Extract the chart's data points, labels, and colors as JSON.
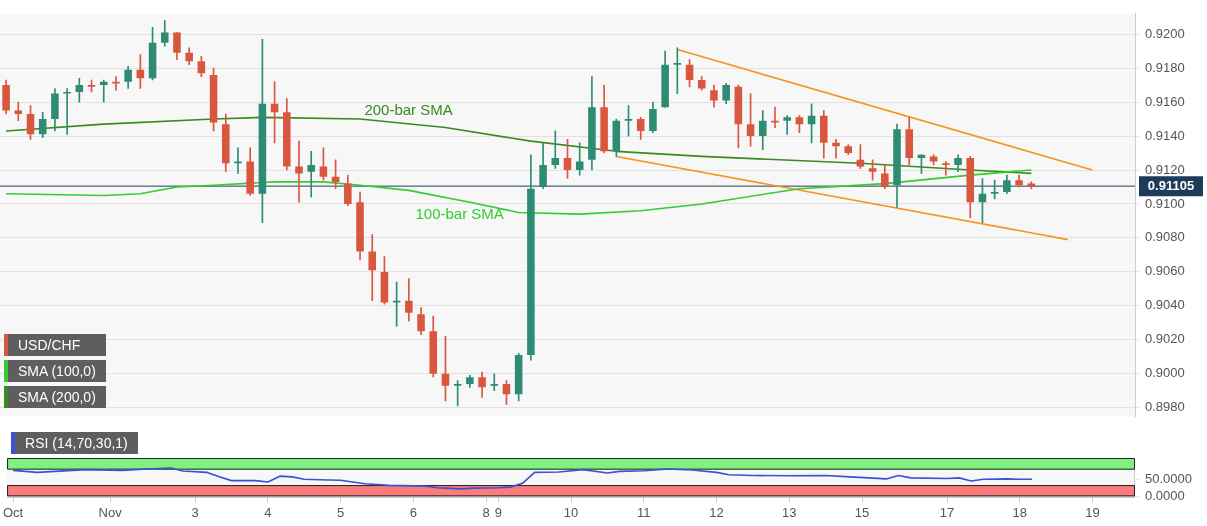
{
  "chart_data": [
    {
      "type": "candlestick",
      "categories": [
        null,
        null,
        null,
        null,
        null,
        null,
        null,
        null,
        null,
        null,
        null,
        null,
        null,
        null,
        null,
        null,
        null,
        null,
        null,
        null,
        null,
        null,
        null,
        null,
        null,
        null,
        null,
        null,
        null,
        null,
        null,
        null,
        null,
        null,
        null,
        null,
        null,
        null,
        null,
        null,
        null,
        null,
        null,
        null,
        null,
        null,
        null,
        null,
        null,
        null,
        null,
        null,
        null,
        null,
        null,
        null,
        null,
        null,
        null,
        null,
        null,
        null,
        null,
        null,
        null,
        null,
        null,
        null,
        null,
        null,
        null,
        null,
        null,
        null,
        null,
        null,
        null,
        null,
        null,
        null,
        null,
        null,
        null,
        null,
        null,
        null,
        null,
        null,
        null,
        null,
        null,
        null,
        null
      ],
      "series": [
        {
          "name": "USD/CHF",
          "ohlc": [
            [
              0.917,
              0.9173,
              0.9153,
              0.9155
            ],
            [
              0.9155,
              0.916,
              0.9149,
              0.9153
            ],
            [
              0.9153,
              0.9158,
              0.9138,
              0.9141
            ],
            [
              0.9141,
              0.9154,
              0.9139,
              0.915
            ],
            [
              0.915,
              0.9168,
              0.9143,
              0.9165
            ],
            [
              0.9165,
              0.9168,
              0.9141,
              0.9166
            ],
            [
              0.9166,
              0.9174,
              0.916,
              0.917
            ],
            [
              0.917,
              0.9173,
              0.9166,
              0.9169
            ],
            [
              0.917,
              0.9173,
              0.916,
              0.9172
            ],
            [
              0.9172,
              0.9175,
              0.9167,
              0.9171
            ],
            [
              0.9172,
              0.9181,
              0.9168,
              0.9179
            ],
            [
              0.9179,
              0.9188,
              0.9168,
              0.9174
            ],
            [
              0.9174,
              0.9204,
              0.9173,
              0.9195
            ],
            [
              0.9195,
              0.9208,
              0.9193,
              0.9201
            ],
            [
              0.9201,
              0.9201,
              0.9185,
              0.9189
            ],
            [
              0.9189,
              0.9192,
              0.9182,
              0.9184
            ],
            [
              0.9184,
              0.9187,
              0.9175,
              0.9177
            ],
            [
              0.9176,
              0.918,
              0.9143,
              0.9148
            ],
            [
              0.9147,
              0.9153,
              0.9119,
              0.9124
            ],
            [
              0.9124,
              0.9133,
              0.9118,
              0.9125
            ],
            [
              0.9125,
              0.9133,
              0.9105,
              0.9106
            ],
            [
              0.9106,
              0.9197,
              0.9089,
              0.9159
            ],
            [
              0.9159,
              0.9172,
              0.9136,
              0.9154
            ],
            [
              0.9154,
              0.9162,
              0.912,
              0.9122
            ],
            [
              0.9122,
              0.9137,
              0.9101,
              0.9118
            ],
            [
              0.9119,
              0.9131,
              0.9104,
              0.9123
            ],
            [
              0.9122,
              0.9133,
              0.9114,
              0.9116
            ],
            [
              0.9116,
              0.9126,
              0.9109,
              0.9113
            ],
            [
              0.9112,
              0.9117,
              0.9099,
              0.91
            ],
            [
              0.9101,
              0.9107,
              0.9067,
              0.9072
            ],
            [
              0.9072,
              0.9082,
              0.9043,
              0.9061
            ],
            [
              0.906,
              0.9069,
              0.9041,
              0.9042
            ],
            [
              0.9042,
              0.9054,
              0.9028,
              0.9043
            ],
            [
              0.9043,
              0.9056,
              0.9031,
              0.9036
            ],
            [
              0.9035,
              0.9039,
              0.9023,
              0.9025
            ],
            [
              0.9025,
              0.9034,
              0.8998,
              0.9
            ],
            [
              0.9,
              0.9022,
              0.8984,
              0.8993
            ],
            [
              0.8993,
              0.8996,
              0.8981,
              0.8994
            ],
            [
              0.8994,
              0.8999,
              0.8992,
              0.8998
            ],
            [
              0.8998,
              0.9001,
              0.8986,
              0.8992
            ],
            [
              0.8993,
              0.9,
              0.899,
              0.8994
            ],
            [
              0.8994,
              0.8996,
              0.8982,
              0.8988
            ],
            [
              0.8988,
              0.9012,
              0.8984,
              0.9011
            ],
            [
              0.9011,
              0.9129,
              0.9008,
              0.9109
            ],
            [
              0.911,
              0.9136,
              0.9109,
              0.9123
            ],
            [
              0.9123,
              0.9143,
              0.9121,
              0.9127
            ],
            [
              0.9127,
              0.9138,
              0.9115,
              0.912
            ],
            [
              0.912,
              0.9136,
              0.9117,
              0.9125
            ],
            [
              0.9126,
              0.9175,
              0.912,
              0.9157
            ],
            [
              0.9157,
              0.917,
              0.913,
              0.9131
            ],
            [
              0.9131,
              0.915,
              0.9128,
              0.9149
            ],
            [
              0.9149,
              0.9158,
              0.914,
              0.915
            ],
            [
              0.915,
              0.9151,
              0.9138,
              0.9143
            ],
            [
              0.9143,
              0.916,
              0.9142,
              0.9156
            ],
            [
              0.9157,
              0.919,
              0.9157,
              0.9182
            ],
            [
              0.9182,
              0.9192,
              0.9165,
              0.9183
            ],
            [
              0.9182,
              0.9185,
              0.9169,
              0.9173
            ],
            [
              0.9173,
              0.9175,
              0.9167,
              0.9168
            ],
            [
              0.9167,
              0.917,
              0.9157,
              0.9161
            ],
            [
              0.9161,
              0.9171,
              0.9159,
              0.917
            ],
            [
              0.9169,
              0.917,
              0.9133,
              0.9147
            ],
            [
              0.9147,
              0.9165,
              0.9134,
              0.914
            ],
            [
              0.914,
              0.9155,
              0.9132,
              0.9149
            ],
            [
              0.9149,
              0.9157,
              0.9145,
              0.9148
            ],
            [
              0.9149,
              0.9152,
              0.9141,
              0.9151
            ],
            [
              0.9151,
              0.9152,
              0.9142,
              0.9147
            ],
            [
              0.9147,
              0.9159,
              0.9136,
              0.9152
            ],
            [
              0.9152,
              0.9155,
              0.9127,
              0.9136
            ],
            [
              0.9136,
              0.9138,
              0.9127,
              0.9134
            ],
            [
              0.9134,
              0.9135,
              0.9129,
              0.913
            ],
            [
              0.9126,
              0.9135,
              0.9121,
              0.9122
            ],
            [
              0.9121,
              0.9126,
              0.9114,
              0.9119
            ],
            [
              0.9118,
              0.9123,
              0.9109,
              0.911
            ],
            [
              0.9111,
              0.9147,
              0.9098,
              0.9144
            ],
            [
              0.9144,
              0.9151,
              0.9123,
              0.9127
            ],
            [
              0.9127,
              0.9129,
              0.9118,
              0.9129
            ],
            [
              0.9128,
              0.9129,
              0.9123,
              0.9125
            ],
            [
              0.9124,
              0.9125,
              0.9117,
              0.9123
            ],
            [
              0.9123,
              0.9129,
              0.9119,
              0.9127
            ],
            [
              0.9127,
              0.9128,
              0.9092,
              0.9101
            ],
            [
              0.9101,
              0.9115,
              0.9089,
              0.9106
            ],
            [
              0.9106,
              0.9114,
              0.9103,
              0.9107
            ],
            [
              0.9107,
              0.9117,
              0.9106,
              0.9114
            ],
            [
              0.9114,
              0.9117,
              0.911,
              0.9111
            ],
            [
              0.9112,
              0.9113,
              0.9109,
              0.91105
            ],
            null,
            null,
            null,
            null,
            null,
            null,
            null,
            null
          ],
          "colors": [
            "#d9573f",
            "#d9573f",
            "#d9573f",
            "#2f8c74",
            "#2f8c74",
            "#2f8c74",
            "#2f8c74",
            "#d9573f",
            "#2f8c74",
            "#d9573f",
            "#2f8c74",
            "#d9573f",
            "#2f8c74",
            "#2f8c74",
            "#d9573f",
            "#d9573f",
            "#d9573f",
            "#d9573f",
            "#d9573f",
            "#2f8c74",
            "#d9573f",
            "#2f8c74",
            "#d9573f",
            "#d9573f",
            "#d9573f",
            "#2f8c74",
            "#d9573f",
            "#d9573f",
            "#d9573f",
            "#d9573f",
            "#d9573f",
            "#d9573f",
            "#2f8c74",
            "#d9573f",
            "#d9573f",
            "#d9573f",
            "#d9573f",
            "#2f8c74",
            "#2f8c74",
            "#d9573f",
            "#2f8c74",
            "#d9573f",
            "#2f8c74",
            "#2f8c74",
            "#2f8c74",
            "#2f8c74",
            "#d9573f",
            "#2f8c74",
            "#2f8c74",
            "#d9573f",
            "#2f8c74",
            "#2f8c74",
            "#d9573f",
            "#2f8c74",
            "#2f8c74",
            "#2f8c74",
            "#d9573f",
            "#d9573f",
            "#d9573f",
            "#2f8c74",
            "#d9573f",
            "#d9573f",
            "#2f8c74",
            "#d9573f",
            "#2f8c74",
            "#d9573f",
            "#2f8c74",
            "#d9573f",
            "#d9573f",
            "#d9573f",
            "#d9573f",
            "#d9573f",
            "#d9573f",
            "#2f8c74",
            "#d9573f",
            "#2f8c74",
            "#d9573f",
            "#d9573f",
            "#2f8c74",
            "#d9573f",
            "#2f8c74",
            "#2f8c74",
            "#2f8c74",
            "#d9573f",
            "#d9573f",
            null,
            null,
            null,
            null,
            null,
            null,
            null,
            null
          ]
        },
        {
          "name": "SMA (100,0)",
          "type": "line",
          "color": "#33cc33",
          "values": [
            0.9106,
            null,
            null,
            null,
            null,
            null,
            null,
            null,
            0.9105,
            null,
            null,
            0.9106,
            null,
            null,
            0.911,
            null,
            null,
            0.9111,
            null,
            null,
            null,
            null,
            0.9113,
            null,
            null,
            null,
            0.9113,
            null,
            null,
            0.9111,
            null,
            null,
            null,
            0.9108,
            null,
            null,
            null,
            null,
            0.9101,
            null,
            null,
            null,
            0.9095,
            null,
            null,
            null,
            null,
            0.9094,
            null,
            null,
            null,
            null,
            0.9096,
            null,
            null,
            null,
            null,
            0.91,
            null,
            null,
            null,
            null,
            null,
            null,
            null,
            0.9109,
            null,
            null,
            null,
            null,
            null,
            null,
            0.9112,
            null,
            null,
            null,
            null,
            null,
            null,
            0.9117,
            null,
            null,
            null,
            null,
            0.912,
            null,
            null,
            null,
            null,
            null,
            null,
            null,
            null
          ]
        },
        {
          "name": "SMA (200,0)",
          "type": "line",
          "color": "#3a8a1e",
          "values": [
            0.9143,
            null,
            null,
            null,
            null,
            null,
            null,
            null,
            0.9147,
            null,
            null,
            null,
            null,
            null,
            null,
            null,
            null,
            0.915,
            null,
            null,
            null,
            0.9151,
            null,
            null,
            null,
            null,
            null,
            null,
            null,
            0.915,
            null,
            null,
            null,
            null,
            null,
            null,
            0.9145,
            null,
            null,
            null,
            null,
            null,
            null,
            0.9137,
            null,
            null,
            null,
            null,
            null,
            null,
            0.9131,
            null,
            null,
            null,
            null,
            null,
            null,
            0.9128,
            null,
            null,
            null,
            null,
            null,
            null,
            null,
            null,
            null,
            null,
            null,
            null,
            0.9124,
            null,
            null,
            null,
            null,
            null,
            null,
            null,
            null,
            0.912,
            null,
            null,
            null,
            null,
            0.9118,
            null,
            null,
            null,
            null,
            null,
            null,
            null,
            null
          ]
        },
        {
          "type": "line",
          "color": "#f7941d",
          "values": [
            null,
            null,
            null,
            null,
            null,
            null,
            null,
            null,
            null,
            null,
            null,
            null,
            null,
            null,
            null,
            null,
            null,
            null,
            null,
            null,
            null,
            null,
            null,
            null,
            null,
            null,
            null,
            null,
            null,
            null,
            null,
            null,
            null,
            null,
            null,
            null,
            null,
            null,
            null,
            null,
            null,
            null,
            null,
            null,
            null,
            null,
            null,
            null,
            null,
            null,
            null,
            null,
            null,
            null,
            null,
            0.9191,
            null,
            null,
            null,
            null,
            null,
            null,
            null,
            null,
            null,
            null,
            null,
            null,
            null,
            null,
            null,
            null,
            null,
            null,
            null,
            null,
            null,
            null,
            null,
            null,
            null,
            null,
            null,
            null,
            null,
            null,
            null,
            null,
            null,
            0.912,
            null,
            null,
            null
          ]
        },
        {
          "type": "line",
          "color": "#f7941d",
          "values": [
            null,
            null,
            null,
            null,
            null,
            null,
            null,
            null,
            null,
            null,
            null,
            null,
            null,
            null,
            null,
            null,
            null,
            null,
            null,
            null,
            null,
            null,
            null,
            null,
            null,
            null,
            null,
            null,
            null,
            null,
            null,
            null,
            null,
            null,
            null,
            null,
            null,
            null,
            null,
            null,
            null,
            null,
            null,
            null,
            null,
            null,
            null,
            null,
            null,
            null,
            0.9128,
            null,
            null,
            null,
            null,
            null,
            null,
            null,
            null,
            null,
            null,
            null,
            null,
            null,
            null,
            null,
            null,
            null,
            null,
            null,
            null,
            null,
            null,
            null,
            null,
            null,
            null,
            null,
            null,
            null,
            null,
            null,
            null,
            null,
            null,
            null,
            null,
            0.9079,
            null,
            null,
            null,
            null,
            null
          ]
        }
      ],
      "ylim": [
        0.8975,
        0.9212
      ],
      "yticks": [
        {
          "value": 0.898,
          "label": "0.8980"
        },
        {
          "value": 0.9,
          "label": "0.9000"
        },
        {
          "value": 0.902,
          "label": "0.9020"
        },
        {
          "value": 0.904,
          "label": "0.9040"
        },
        {
          "value": 0.906,
          "label": "0.9060"
        },
        {
          "value": 0.908,
          "label": "0.9080"
        },
        {
          "value": 0.91,
          "label": "0.9100"
        },
        {
          "value": 0.912,
          "label": "0.9120"
        },
        {
          "value": 0.914,
          "label": "0.9140"
        },
        {
          "value": 0.916,
          "label": "0.9160"
        },
        {
          "value": 0.918,
          "label": "0.9180"
        },
        {
          "value": 0.92,
          "label": "0.9200"
        }
      ],
      "grid": "y",
      "legend": "bottom left",
      "tick_labels": "y",
      "ref_lines": [
        {
          "axis": "y",
          "value": 0.91105,
          "label": "0.91105",
          "color": "#1f3b5c"
        }
      ],
      "annotations": [
        "200-bar SMA",
        "100-bar SMA"
      ]
    },
    {
      "type": "line",
      "categories": [
        "Oct",
        null,
        null,
        null,
        null,
        null,
        null,
        null,
        "Nov",
        null,
        null,
        null,
        null,
        null,
        null,
        "3",
        null,
        null,
        null,
        null,
        null,
        "4",
        null,
        null,
        null,
        null,
        null,
        "5",
        null,
        null,
        null,
        null,
        null,
        "6",
        null,
        null,
        null,
        null,
        null,
        "8",
        "9",
        null,
        null,
        null,
        null,
        null,
        "10",
        null,
        null,
        null,
        null,
        null,
        "11",
        null,
        null,
        null,
        null,
        null,
        "12",
        null,
        null,
        null,
        null,
        null,
        "13",
        null,
        null,
        null,
        null,
        null,
        "15",
        null,
        null,
        null,
        null,
        null,
        null,
        "17",
        null,
        null,
        null,
        null,
        null,
        "18",
        null,
        null,
        null,
        null,
        null,
        "19",
        null,
        null,
        null
      ],
      "series": [
        {
          "name": "RSI (14,70,30,1)",
          "color": "#3652d6",
          "values": [
            76,
            null,
            70,
            null,
            null,
            null,
            78,
            null,
            null,
            76,
            null,
            80,
            null,
            83,
            74,
            null,
            70,
            57,
            46,
            null,
            46,
            42,
            59,
            57,
            50,
            null,
            48,
            47,
            null,
            37,
            null,
            32,
            null,
            null,
            30,
            25,
            null,
            22,
            24,
            null,
            25,
            27,
            38,
            70,
            null,
            71,
            null,
            78,
            null,
            68,
            73,
            null,
            75,
            null,
            80,
            null,
            77,
            null,
            70,
            63,
            null,
            61,
            null,
            null,
            60,
            null,
            null,
            61,
            null,
            57,
            null,
            null,
            51,
            61,
            54,
            null,
            null,
            52,
            54,
            45,
            50,
            null,
            51,
            50,
            50,
            null,
            null,
            null,
            null,
            null,
            null,
            null,
            null
          ]
        }
      ],
      "ylim": [
        -3,
        112
      ],
      "yticks": [
        {
          "value": 0,
          "label": "0.0000"
        },
        {
          "value": 50,
          "label": "50.0000"
        }
      ],
      "bands": [
        {
          "axis": "y",
          "from": 78,
          "to": 112,
          "color": "#80f080"
        },
        {
          "axis": "y",
          "from": 0,
          "to": 33,
          "color": "#fc7b7b"
        }
      ],
      "legend": "top left"
    }
  ]
}
